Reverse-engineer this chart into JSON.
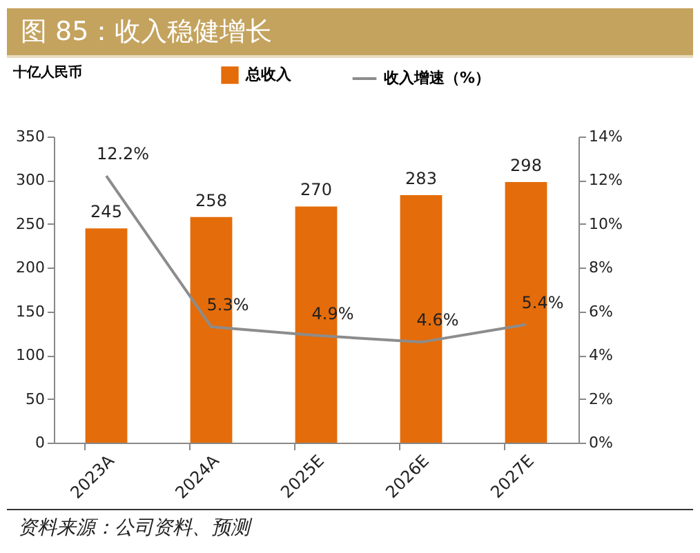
{
  "chart_data": {
    "type": "bar",
    "title": "图 85：收入稳健增长",
    "ylabel": "十亿人民币",
    "categories": [
      "2023A",
      "2024A",
      "2025E",
      "2026E",
      "2027E"
    ],
    "series": [
      {
        "name": "总收入",
        "color": "#e46c0a",
        "values": [
          245,
          258,
          270,
          283,
          298
        ]
      },
      {
        "name": "收入增速（%）",
        "type": "line",
        "axis": "y2",
        "color": "#8c8c8c",
        "values": [
          12.2,
          5.3,
          4.9,
          4.6,
          5.4
        ],
        "value_labels": [
          "12.2%",
          "5.3%",
          "4.9%",
          "4.6%",
          "5.4%"
        ]
      }
    ],
    "data_labels": true,
    "ylim": [
      0,
      350
    ],
    "yticks": [
      0,
      50,
      100,
      150,
      200,
      250,
      300,
      350
    ],
    "y2lim": [
      0,
      14
    ],
    "y2ticks": [
      {
        "value": 0,
        "label": "0%"
      },
      {
        "value": 2,
        "label": "2%"
      },
      {
        "value": 4,
        "label": "4%"
      },
      {
        "value": 6,
        "label": "6%"
      },
      {
        "value": 8,
        "label": "8%"
      },
      {
        "value": 10,
        "label": "10%"
      },
      {
        "value": 12,
        "label": "12%"
      },
      {
        "value": 14,
        "label": "14%"
      }
    ],
    "legend": "top",
    "grid": false,
    "annotations": [
      "资料来源：公司资料、预测"
    ]
  }
}
